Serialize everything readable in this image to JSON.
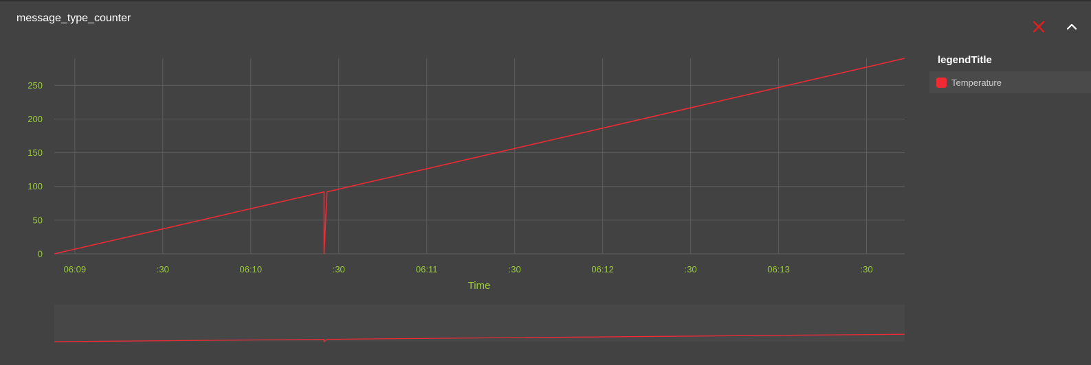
{
  "panel": {
    "title": "message_type_counter",
    "close_icon": "close-icon",
    "collapse_icon": "chevron-up-icon"
  },
  "colors": {
    "background": "#424242",
    "grid": "#5d5d5d",
    "tick_label": "#9ccc3c",
    "series": "#ee2a35",
    "close": "#e0201e",
    "overview_bg": "#474747"
  },
  "chart_data": {
    "type": "line",
    "title": "",
    "xlabel": "Time",
    "ylabel": "",
    "y_ticks": [
      0,
      50,
      100,
      150,
      200,
      250
    ],
    "ylim": [
      0,
      290
    ],
    "x_domain": [
      "06:08:53",
      "06:13:43"
    ],
    "x_ticks": [
      {
        "time": "06:09:00",
        "label": "06:09"
      },
      {
        "time": "06:09:30",
        "label": ":30"
      },
      {
        "time": "06:10:00",
        "label": "06:10"
      },
      {
        "time": "06:10:30",
        "label": ":30"
      },
      {
        "time": "06:11:00",
        "label": "06:11"
      },
      {
        "time": "06:11:30",
        "label": ":30"
      },
      {
        "time": "06:12:00",
        "label": "06:12"
      },
      {
        "time": "06:12:30",
        "label": ":30"
      },
      {
        "time": "06:13:00",
        "label": "06:13"
      },
      {
        "time": "06:13:30",
        "label": ":30"
      }
    ],
    "legend_title": "legendTitle",
    "legend_position": "right",
    "grid": true,
    "series": [
      {
        "name": "Temperature",
        "points": [
          {
            "t": "06:08:53",
            "v": 0
          },
          {
            "t": "06:10:25",
            "v": 92
          },
          {
            "t": "06:10:25",
            "v": 0
          },
          {
            "t": "06:10:26",
            "v": 92
          },
          {
            "t": "06:10:27",
            "v": 93
          },
          {
            "t": "06:13:43",
            "v": 290
          }
        ]
      }
    ]
  }
}
